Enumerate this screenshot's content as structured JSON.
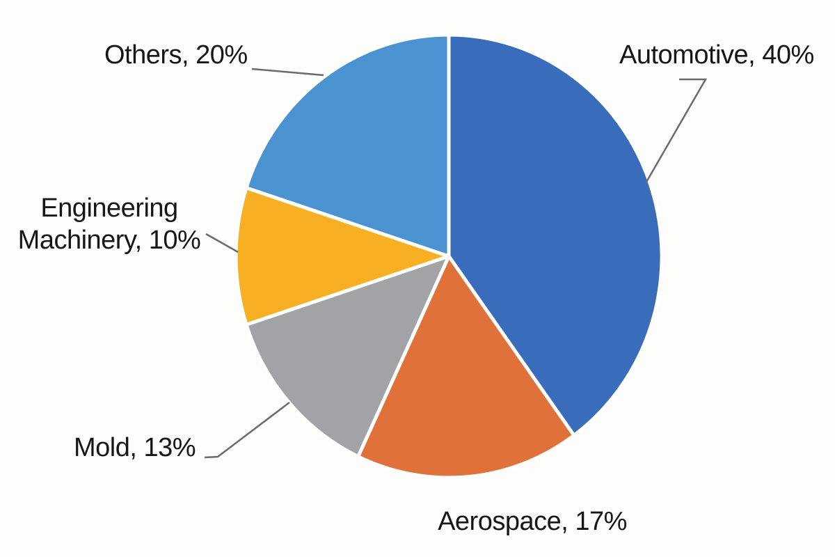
{
  "figure": {
    "background_color": "#FDFDFC",
    "label_color": "#161616",
    "leader_line_color": "#6B6B6B",
    "slice_border_color": "#FFFFFF"
  },
  "chart_data": {
    "type": "pie",
    "title": "",
    "categories": [
      "Automotive",
      "Aerospace",
      "Mold",
      "Engineering Machinery",
      "Others"
    ],
    "values": [
      40,
      17,
      13,
      10,
      20
    ],
    "unit": "%",
    "colors": [
      "#3A6CBC",
      "#E0713A",
      "#A1A3A6",
      "#F7B024",
      "#4A92D0"
    ],
    "start_angle_deg": 0,
    "direction": "clockwise",
    "legend": "none",
    "data_labels": "outside-with-leader-lines"
  },
  "label_texts": {
    "automotive": "Automotive, 40%",
    "aerospace": "Aerospace, 17%",
    "mold": "Mold, 13%",
    "engineering_line1": "Engineering",
    "engineering_line2": "Machinery, 10%",
    "others": "Others, 20%"
  }
}
